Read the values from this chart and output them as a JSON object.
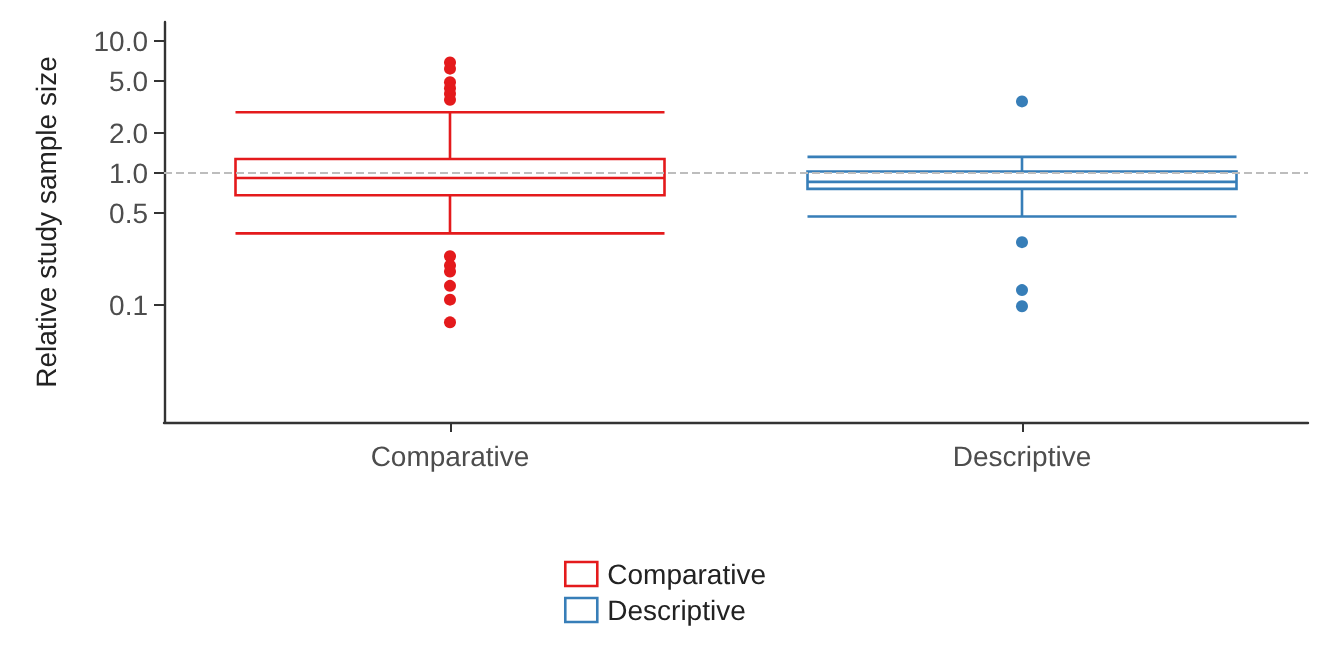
{
  "chart_data": {
    "type": "box",
    "ylabel": "Relative study sample size",
    "categories": [
      "Comparative",
      "Descriptive"
    ],
    "series": [
      {
        "name": "Comparative",
        "color": "#e41a1c",
        "boxes": [
          {
            "low": 0.35,
            "q1": 0.68,
            "median": 0.92,
            "q3": 1.28,
            "high": 2.9,
            "outliers": [
              6.9,
              6.2,
              4.9,
              4.4,
              4.0,
              3.6,
              0.235,
              0.2,
              0.18,
              0.14,
              0.11,
              0.074
            ]
          },
          null
        ]
      },
      {
        "name": "Descriptive",
        "color": "#377eb8",
        "boxes": [
          null,
          {
            "low": 0.47,
            "q1": 0.76,
            "median": 0.86,
            "q3": 1.03,
            "high": 1.33,
            "outliers": [
              3.5,
              0.3,
              0.13,
              0.098
            ]
          }
        ]
      }
    ],
    "log": true,
    "ylim": [
      0.013,
      14
    ],
    "yticks": [
      0.1,
      0.5,
      {
        "value": 1,
        "label": "1.0"
      },
      {
        "value": 2,
        "label": "2.0"
      },
      {
        "value": 5,
        "label": "5.0"
      },
      {
        "value": 10,
        "label": "10.0"
      }
    ],
    "ref_lines": [
      {
        "axis": "y",
        "value": 1,
        "color": "#bdbdbd",
        "line_style": "dashed"
      }
    ],
    "grid": false,
    "legend": "bottom"
  }
}
